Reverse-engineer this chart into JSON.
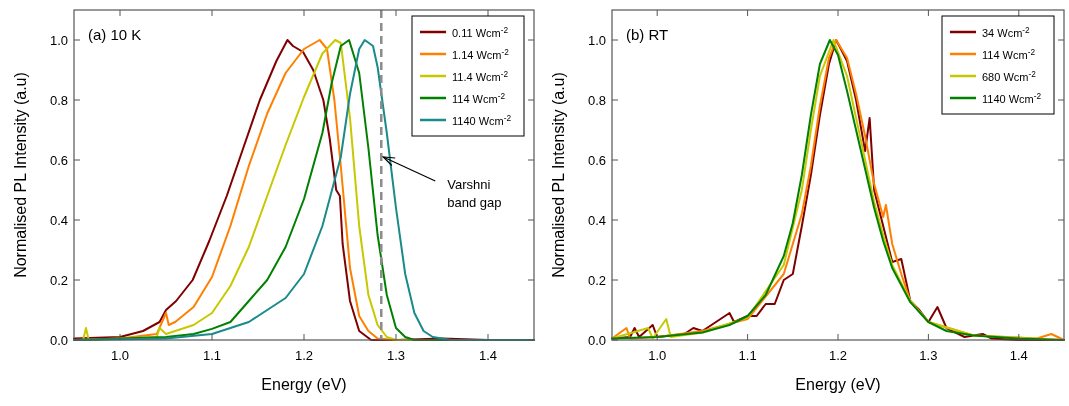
{
  "chart_data": [
    {
      "type": "line",
      "title": "(a) 10 K",
      "xlabel": "Energy (eV)",
      "ylabel": "Normalised PL Intensity (a.u)",
      "xlim": [
        0.95,
        1.45
      ],
      "ylim": [
        0,
        1.1
      ],
      "xticks": [
        {
          "value": 1.0,
          "label": "1.0"
        },
        {
          "value": 1.1,
          "label": "1.1"
        },
        {
          "value": 1.2,
          "label": "1.2"
        },
        {
          "value": 1.3,
          "label": "1.3"
        },
        {
          "value": 1.4,
          "label": "1.4"
        }
      ],
      "yticks": [
        {
          "value": 0,
          "label": "0.0"
        },
        {
          "value": 0.2,
          "label": "0.2"
        },
        {
          "value": 0.4,
          "label": "0.4"
        },
        {
          "value": 0.6,
          "label": "0.6"
        },
        {
          "value": 0.8,
          "label": "0.8"
        },
        {
          "value": 1.0,
          "label": "1.0"
        }
      ],
      "legend": "top right",
      "ref_lines": [
        {
          "axis": "x",
          "value": 1.284,
          "color": "#8c8c8c",
          "line_style": "dashed"
        }
      ],
      "annotations": [
        {
          "text": "Varshni band gap",
          "x": 1.284,
          "y": 0.61
        }
      ],
      "series": [
        {
          "name": "0.11 Wcm$^{-2}$",
          "color": "#800000",
          "x": [
            0.95,
            1.0,
            1.025,
            1.043,
            1.05,
            1.061,
            1.079,
            1.097,
            1.116,
            1.134,
            1.152,
            1.17,
            1.182,
            1.188,
            1.199,
            1.21,
            1.221,
            1.228,
            1.235,
            1.239,
            1.242,
            1.25,
            1.26,
            1.273,
            1.3,
            1.35,
            1.4,
            1.45
          ],
          "values": [
            0.005,
            0.01,
            0.03,
            0.06,
            0.1,
            0.13,
            0.2,
            0.33,
            0.48,
            0.64,
            0.8,
            0.93,
            1.0,
            0.98,
            0.96,
            0.9,
            0.8,
            0.67,
            0.5,
            0.48,
            0.32,
            0.13,
            0.03,
            0,
            0,
            0.005,
            0,
            0
          ]
        },
        {
          "name": "1.14 Wcm$^{-2}$",
          "color": "#ff8000",
          "x": [
            0.95,
            1.0,
            1.04,
            1.05,
            1.053,
            1.06,
            1.08,
            1.1,
            1.12,
            1.14,
            1.16,
            1.18,
            1.2,
            1.217,
            1.225,
            1.233,
            1.24,
            1.25,
            1.26,
            1.27,
            1.28,
            1.3,
            1.45
          ],
          "values": [
            0,
            0.005,
            0.02,
            0.09,
            0.05,
            0.06,
            0.11,
            0.21,
            0.38,
            0.58,
            0.755,
            0.89,
            0.97,
            1.0,
            0.97,
            0.8,
            0.58,
            0.24,
            0.08,
            0.03,
            0.005,
            0,
            0
          ]
        },
        {
          "name": "11.4 Wcm$^{-2}$",
          "color": "#c8c800",
          "x": [
            0.95,
            0.96,
            0.963,
            0.966,
            1.0,
            1.04,
            1.043,
            1.05,
            1.08,
            1.1,
            1.12,
            1.14,
            1.16,
            1.18,
            1.2,
            1.22,
            1.234,
            1.24,
            1.25,
            1.26,
            1.27,
            1.28,
            1.29,
            1.3,
            1.45
          ],
          "values": [
            0,
            0,
            0.04,
            0,
            0.005,
            0.01,
            0.04,
            0.02,
            0.05,
            0.09,
            0.18,
            0.31,
            0.48,
            0.65,
            0.81,
            0.955,
            1.0,
            0.99,
            0.74,
            0.38,
            0.15,
            0.05,
            0.01,
            0,
            0
          ]
        },
        {
          "name": "114 Wcm$^{-2}$",
          "color": "#008000",
          "x": [
            0.95,
            1.05,
            1.08,
            1.1,
            1.12,
            1.14,
            1.16,
            1.18,
            1.2,
            1.22,
            1.23,
            1.24,
            1.249,
            1.26,
            1.27,
            1.28,
            1.29,
            1.3,
            1.31,
            1.32,
            1.45
          ],
          "values": [
            0,
            0.01,
            0.02,
            0.037,
            0.06,
            0.13,
            0.2,
            0.31,
            0.47,
            0.69,
            0.855,
            0.98,
            1.0,
            0.89,
            0.64,
            0.35,
            0.15,
            0.04,
            0.01,
            0,
            0
          ]
        },
        {
          "name": "1140 Wcm$^{-2}$",
          "color": "#1a8a8a",
          "x": [
            0.95,
            1.05,
            1.1,
            1.12,
            1.14,
            1.16,
            1.18,
            1.2,
            1.22,
            1.24,
            1.25,
            1.26,
            1.266,
            1.275,
            1.28,
            1.29,
            1.3,
            1.31,
            1.32,
            1.33,
            1.34,
            1.36,
            1.45
          ],
          "values": [
            0,
            0.005,
            0.02,
            0.04,
            0.06,
            0.1,
            0.14,
            0.22,
            0.38,
            0.61,
            0.82,
            0.97,
            1.0,
            0.98,
            0.91,
            0.69,
            0.44,
            0.22,
            0.09,
            0.03,
            0.01,
            0,
            0
          ]
        }
      ]
    },
    {
      "type": "line",
      "title": "(b) RT",
      "xlabel": "Energy (eV)",
      "ylabel": "Normalised PL Intensity (a.u)",
      "xlim": [
        0.95,
        1.45
      ],
      "ylim": [
        0,
        1.1
      ],
      "xticks": [
        {
          "value": 1.0,
          "label": "1.0"
        },
        {
          "value": 1.1,
          "label": "1.1"
        },
        {
          "value": 1.2,
          "label": "1.2"
        },
        {
          "value": 1.3,
          "label": "1.3"
        },
        {
          "value": 1.4,
          "label": "1.4"
        }
      ],
      "yticks": [
        {
          "value": 0,
          "label": "0.0"
        },
        {
          "value": 0.2,
          "label": "0.2"
        },
        {
          "value": 0.4,
          "label": "0.4"
        },
        {
          "value": 0.6,
          "label": "0.6"
        },
        {
          "value": 0.8,
          "label": "0.8"
        },
        {
          "value": 1.0,
          "label": "1.0"
        }
      ],
      "legend": "top right",
      "series": [
        {
          "name": "34 Wcm$^{-2}$",
          "color": "#800000",
          "x": [
            0.95,
            0.97,
            0.975,
            0.98,
            0.995,
            1.0,
            1.03,
            1.04,
            1.05,
            1.08,
            1.085,
            1.1,
            1.11,
            1.12,
            1.13,
            1.14,
            1.15,
            1.16,
            1.17,
            1.18,
            1.19,
            1.198,
            1.21,
            1.22,
            1.23,
            1.235,
            1.24,
            1.25,
            1.26,
            1.27,
            1.28,
            1.29,
            1.3,
            1.31,
            1.32,
            1.34,
            1.36,
            1.37,
            1.4,
            1.45
          ],
          "values": [
            0.005,
            0.01,
            0.04,
            0.01,
            0.05,
            0.01,
            0.02,
            0.04,
            0.03,
            0.09,
            0.06,
            0.08,
            0.08,
            0.12,
            0.12,
            0.2,
            0.22,
            0.38,
            0.55,
            0.75,
            0.92,
            1.0,
            0.93,
            0.8,
            0.63,
            0.74,
            0.5,
            0.38,
            0.26,
            0.27,
            0.13,
            0.1,
            0.06,
            0.11,
            0.04,
            0.01,
            0.02,
            0.005,
            0,
            0
          ]
        },
        {
          "name": "114 Wcm$^{-2}$",
          "color": "#ff8000",
          "x": [
            0.95,
            0.966,
            0.97,
            1.0,
            1.05,
            1.1,
            1.14,
            1.16,
            1.17,
            1.18,
            1.19,
            1.198,
            1.21,
            1.22,
            1.23,
            1.24,
            1.25,
            1.253,
            1.26,
            1.27,
            1.28,
            1.3,
            1.35,
            1.42,
            1.436,
            1.45
          ],
          "values": [
            0.005,
            0.04,
            0.005,
            0.01,
            0.03,
            0.07,
            0.22,
            0.42,
            0.58,
            0.78,
            0.94,
            1.0,
            0.94,
            0.82,
            0.68,
            0.52,
            0.41,
            0.45,
            0.32,
            0.22,
            0.13,
            0.06,
            0.015,
            0.005,
            0.02,
            0
          ]
        },
        {
          "name": "680 Wcm$^{-2}$",
          "color": "#c8c800",
          "x": [
            0.95,
            0.99,
            0.995,
            1.01,
            1.015,
            1.05,
            1.1,
            1.14,
            1.16,
            1.17,
            1.18,
            1.195,
            1.21,
            1.22,
            1.23,
            1.24,
            1.25,
            1.26,
            1.28,
            1.3,
            1.35,
            1.45
          ],
          "values": [
            0.005,
            0.04,
            0.005,
            0.07,
            0.01,
            0.025,
            0.075,
            0.25,
            0.5,
            0.7,
            0.88,
            1.0,
            0.88,
            0.74,
            0.6,
            0.46,
            0.35,
            0.25,
            0.13,
            0.06,
            0.015,
            0
          ]
        },
        {
          "name": "1140 Wcm$^{-2}$",
          "color": "#008000",
          "x": [
            0.95,
            1.0,
            1.05,
            1.08,
            1.1,
            1.12,
            1.14,
            1.15,
            1.16,
            1.17,
            1.18,
            1.191,
            1.2,
            1.21,
            1.22,
            1.23,
            1.24,
            1.25,
            1.26,
            1.28,
            1.3,
            1.32,
            1.35,
            1.4,
            1.45
          ],
          "values": [
            0.005,
            0.01,
            0.025,
            0.05,
            0.08,
            0.15,
            0.28,
            0.39,
            0.55,
            0.75,
            0.92,
            1.0,
            0.95,
            0.83,
            0.7,
            0.57,
            0.44,
            0.33,
            0.24,
            0.126,
            0.06,
            0.03,
            0.015,
            0.005,
            0
          ]
        }
      ]
    }
  ]
}
